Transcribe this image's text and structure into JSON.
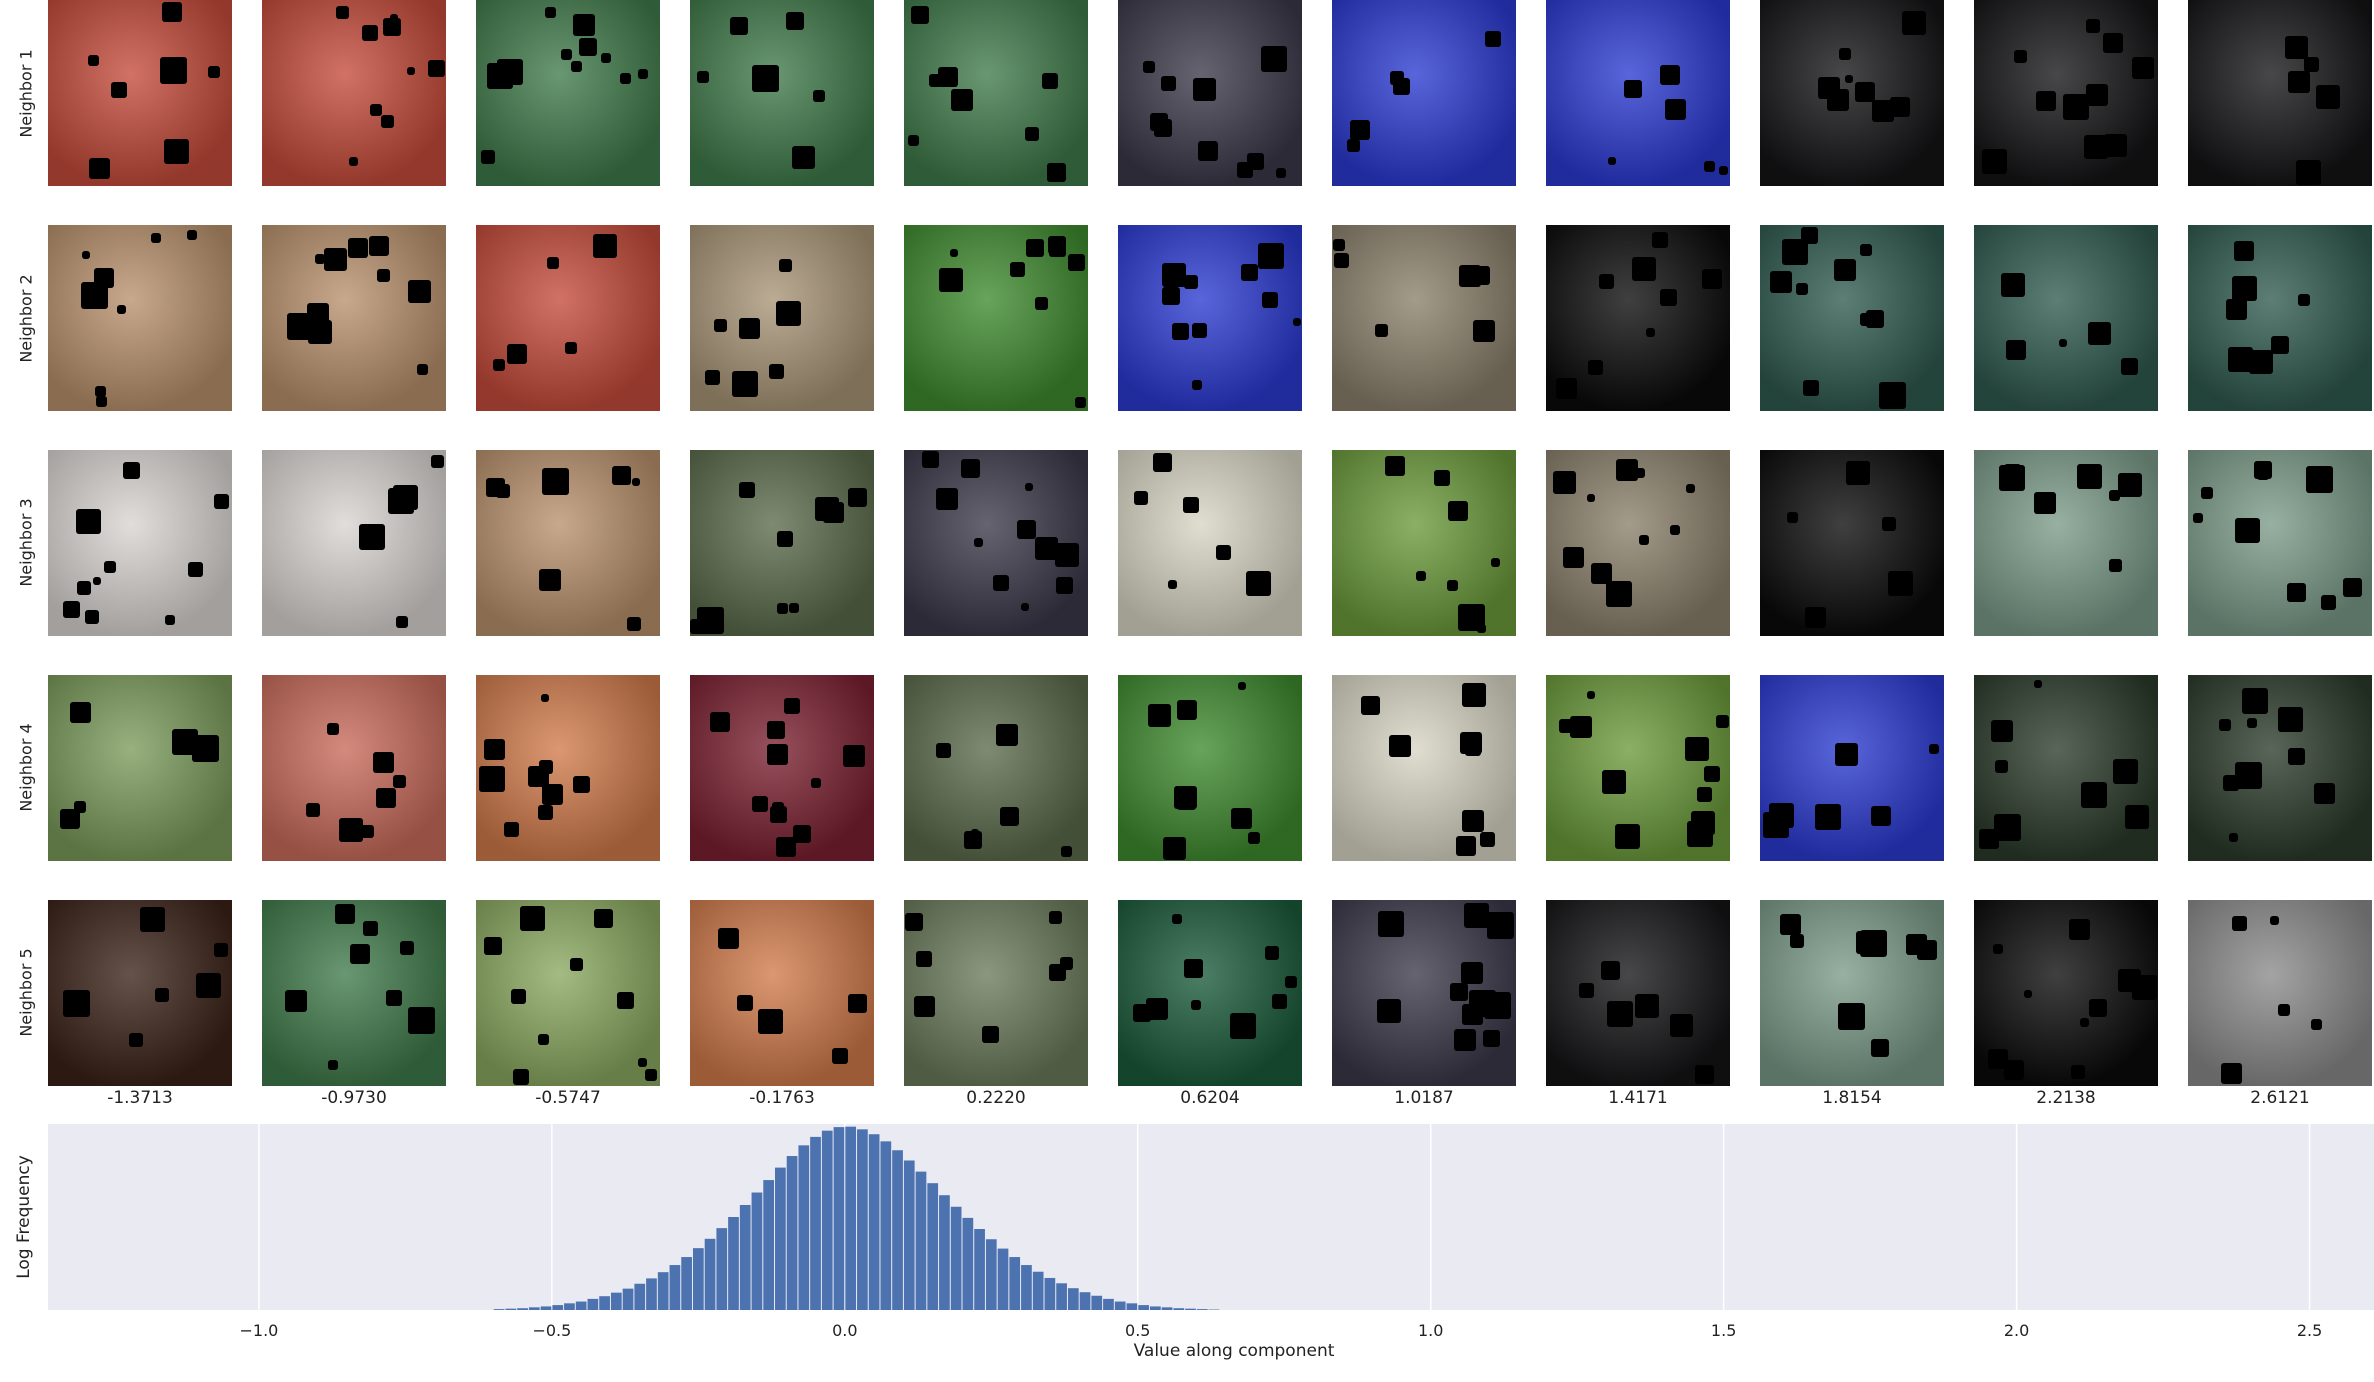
{
  "row_labels": [
    "Neighbor 1",
    "Neighbor 2",
    "Neighbor 3",
    "Neighbor 4",
    "Neighbor 5"
  ],
  "column_values": [
    "-1.3713",
    "-0.9730",
    "-0.5747",
    "-0.1763",
    "0.2220",
    "0.6204",
    "1.0187",
    "1.4171",
    "1.8154",
    "2.2138",
    "2.6121"
  ],
  "thumbnails": [
    [
      "#c44a3a",
      "#c44a3a",
      "#3f7a4a",
      "#3f7a4a",
      "#3f7a4a",
      "#3a3848",
      "#2a3ad0",
      "#2a3ad0",
      "#141416",
      "#141416",
      "#141416"
    ],
    [
      "#b8906c",
      "#b8906c",
      "#c44a3a",
      "#a89476",
      "#3e8a2e",
      "#2a3ad0",
      "#8a7f6a",
      "#0a0a0a",
      "#2f5a4e",
      "#2f5a4e",
      "#2f5a4e"
    ],
    [
      "#d8d4d0",
      "#d8d4d0",
      "#b8906c",
      "#5a6a4a",
      "#3a3848",
      "#d8d4c4",
      "#6a9a3a",
      "#8a7f6a",
      "#0a0a0a",
      "#7a9a88",
      "#7a9a88"
    ],
    [
      "#7a9a5a",
      "#c86a5a",
      "#d07a4a",
      "#7a2030",
      "#5a6a4a",
      "#3e8a2e",
      "#d8d4c4",
      "#6a9a3a",
      "#2a3ad0",
      "#2a3a2a",
      "#2a3a2a"
    ],
    [
      "#3a2218",
      "#3f7a4a",
      "#8aa860",
      "#d07a4a",
      "#6a7a5a",
      "#1a5a3a",
      "#3a3848",
      "#141416",
      "#7a9a88",
      "#0a0a0a",
      "#8a8a8a"
    ]
  ],
  "colors": {
    "plot_background": "#eaeaf2",
    "bar": "#4c72b0",
    "grid": "#ffffff",
    "text": "#222222"
  },
  "chart_data": {
    "type": "bar",
    "xlabel": "Value along component",
    "ylabel": "Log Frequency",
    "xlim": [
      -1.36,
      2.61
    ],
    "ylim": [
      0,
      4.18
    ],
    "xticks": [
      -1.0,
      -0.5,
      0.0,
      0.5,
      1.0,
      1.5,
      2.0,
      2.5
    ],
    "xtick_labels": [
      "−1.0",
      "−0.5",
      "0.0",
      "0.5",
      "1.0",
      "1.5",
      "2.0",
      "2.5"
    ],
    "grid": true,
    "bin_width": 0.02,
    "bin_centers": [
      -0.59,
      -0.57,
      -0.55,
      -0.53,
      -0.51,
      -0.49,
      -0.47,
      -0.45,
      -0.43,
      -0.41,
      -0.39,
      -0.37,
      -0.35,
      -0.33,
      -0.31,
      -0.29,
      -0.27,
      -0.25,
      -0.23,
      -0.21,
      -0.19,
      -0.17,
      -0.15,
      -0.13,
      -0.11,
      -0.09,
      -0.07,
      -0.05,
      -0.03,
      -0.01,
      0.01,
      0.03,
      0.05,
      0.07,
      0.09,
      0.11,
      0.13,
      0.15,
      0.17,
      0.19,
      0.21,
      0.23,
      0.25,
      0.27,
      0.29,
      0.31,
      0.33,
      0.35,
      0.37,
      0.39,
      0.41,
      0.43,
      0.45,
      0.47,
      0.49,
      0.51,
      0.53,
      0.55,
      0.57,
      0.59,
      0.61,
      0.63
    ],
    "values": [
      0.02,
      0.03,
      0.04,
      0.06,
      0.08,
      0.11,
      0.15,
      0.19,
      0.25,
      0.31,
      0.39,
      0.48,
      0.59,
      0.71,
      0.85,
      1.01,
      1.19,
      1.39,
      1.6,
      1.84,
      2.09,
      2.36,
      2.64,
      2.92,
      3.2,
      3.46,
      3.7,
      3.89,
      4.03,
      4.11,
      4.12,
      4.06,
      3.95,
      3.79,
      3.59,
      3.36,
      3.11,
      2.85,
      2.58,
      2.32,
      2.07,
      1.82,
      1.59,
      1.38,
      1.19,
      1.01,
      0.86,
      0.72,
      0.6,
      0.49,
      0.4,
      0.32,
      0.25,
      0.19,
      0.15,
      0.11,
      0.08,
      0.06,
      0.04,
      0.03,
      0.02,
      0.01
    ]
  }
}
